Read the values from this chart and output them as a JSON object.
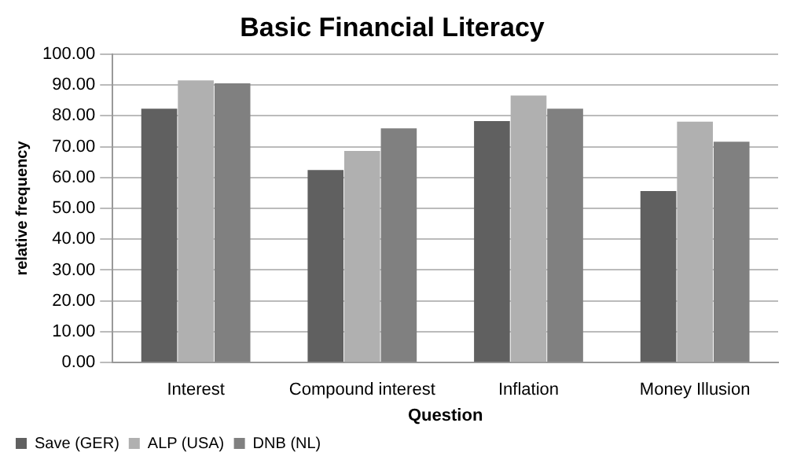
{
  "chart_data": {
    "type": "bar",
    "title": "Basic Financial Literacy",
    "xlabel": "Question",
    "ylabel": "relative frequency",
    "categories": [
      "Interest",
      "Compound interest",
      "Inflation",
      "Money Illusion"
    ],
    "series": [
      {
        "name": "Save (GER)",
        "color": "#606060",
        "values": [
          82.3,
          62.4,
          78.3,
          55.6
        ]
      },
      {
        "name": "ALP (USA)",
        "color": "#b0b0b0",
        "values": [
          91.5,
          68.6,
          86.6,
          78.1
        ]
      },
      {
        "name": "DNB (NL)",
        "color": "#808080",
        "values": [
          90.5,
          75.9,
          82.3,
          71.6
        ]
      }
    ],
    "ylim": [
      0,
      100
    ],
    "yticks": [
      {
        "value": 0,
        "label": "0.00"
      },
      {
        "value": 10,
        "label": "10.00"
      },
      {
        "value": 20,
        "label": "20.00"
      },
      {
        "value": 30,
        "label": "30.00"
      },
      {
        "value": 40,
        "label": "40.00"
      },
      {
        "value": 50,
        "label": "50.00"
      },
      {
        "value": 60,
        "label": "60.00"
      },
      {
        "value": 70,
        "label": "70.00"
      },
      {
        "value": 80,
        "label": "80.00"
      },
      {
        "value": 90,
        "label": "90.00"
      },
      {
        "value": 100,
        "label": "100.00"
      }
    ],
    "grid": "y",
    "legend": "bottom"
  }
}
